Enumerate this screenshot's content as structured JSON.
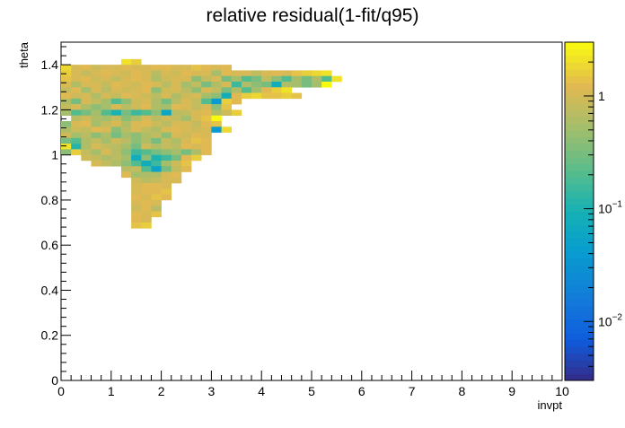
{
  "chart_data": {
    "type": "heatmap",
    "title": "relative residual(1-fit/q95)",
    "xlabel": "invpt",
    "ylabel": "theta",
    "xlim": [
      0,
      10
    ],
    "ylim": [
      0,
      1.5
    ],
    "x_ticks": [
      "0",
      "1",
      "2",
      "3",
      "4",
      "5",
      "6",
      "7",
      "8",
      "9",
      "10"
    ],
    "y_ticks": [
      "0",
      "0.2",
      "0.4",
      "0.6",
      "0.8",
      "1",
      "1.2",
      "1.4"
    ],
    "colorbar": {
      "scale": "log",
      "range": [
        0.003,
        3
      ],
      "ticks": [
        {
          "base": "10",
          "exp": "-2",
          "v": 0.01
        },
        {
          "base": "10",
          "exp": "-1",
          "v": 0.1
        },
        {
          "base": "1",
          "exp": "",
          "v": 1
        }
      ]
    },
    "grid": false,
    "bin_width": [
      0.2,
      0.025
    ],
    "rows": [
      {
        "y": 1.4,
        "x0": 1.2,
        "values": [
          2.0,
          1.6
        ]
      },
      {
        "y": 1.375,
        "x0": 0.0,
        "values": [
          1.8,
          1.0,
          1.2,
          0.9,
          1.1,
          1.0,
          1.2,
          1.1,
          1.0,
          1.2,
          1.3,
          1.0,
          1.1,
          1.4,
          1.2,
          1.0,
          1.3
        ]
      },
      {
        "y": 1.35,
        "x0": 0.0,
        "values": [
          1.6,
          1.1,
          0.8,
          1.0,
          1.2,
          1.0,
          0.9,
          1.3,
          1.1,
          0.7,
          1.0,
          0.9,
          1.2,
          1.0,
          1.1,
          0.5,
          1.2,
          1.0,
          1.1,
          0.8,
          1.0,
          1.3,
          1.0,
          1.5,
          1.6,
          1.8,
          2.2
        ]
      },
      {
        "y": 1.325,
        "x0": 0.0,
        "values": [
          1.4,
          1.0,
          1.2,
          0.9,
          1.1,
          0.8,
          1.0,
          1.2,
          1.0,
          0.6,
          0.9,
          1.1,
          1.0,
          0.4,
          0.8,
          1.0,
          0.3,
          0.5,
          0.2,
          0.3,
          0.8,
          0.4,
          0.2,
          0.5,
          0.3,
          0.6,
          0.2,
          2.2
        ]
      },
      {
        "y": 1.3,
        "x0": 0.0,
        "values": [
          1.0,
          0.6,
          1.1,
          1.0,
          0.8,
          1.2,
          1.0,
          0.9,
          1.3,
          1.1,
          0.7,
          1.0,
          0.5,
          0.8,
          0.3,
          0.6,
          1.0,
          0.15,
          0.6,
          0.4,
          0.3,
          0.08,
          0.6,
          0.5,
          0.3,
          0.5,
          3.0
        ]
      },
      {
        "y": 1.275,
        "x0": 0.0,
        "values": [
          0.8,
          1.2,
          0.5,
          1.0,
          0.7,
          1.1,
          0.9,
          1.0,
          1.2,
          0.4,
          0.9,
          1.1,
          0.7,
          0.4,
          1.0,
          0.8,
          0.3,
          0.6,
          0.2,
          0.5,
          1.2,
          1.6,
          2.0
        ]
      },
      {
        "y": 1.25,
        "x0": 0.0,
        "values": [
          1.2,
          0.9,
          1.1,
          0.6,
          1.0,
          0.8,
          1.2,
          1.0,
          0.9,
          0.7,
          1.0,
          0.6,
          0.9,
          1.1,
          0.5,
          0.4,
          0.08,
          1.2,
          1.6,
          1.8,
          1.4,
          1.5,
          1.7,
          1.4
        ]
      },
      {
        "y": 1.225,
        "x0": 0.0,
        "values": [
          0.6,
          0.3,
          1.0,
          0.8,
          0.5,
          0.2,
          0.4,
          0.9,
          1.0,
          0.6,
          0.3,
          0.7,
          1.0,
          0.8,
          0.2,
          0.04,
          1.6,
          1.3
        ]
      },
      {
        "y": 1.2,
        "x0": 0.0,
        "values": [
          0.8,
          1.0,
          0.6,
          0.4,
          0.5,
          1.0,
          0.7,
          0.9,
          1.2,
          0.6,
          0.5,
          1.2,
          1.0,
          0.8,
          1.0,
          0.4,
          1.4
        ]
      },
      {
        "y": 1.175,
        "x0": 0.0,
        "values": [
          0.5,
          0.2,
          0.3,
          0.5,
          0.2,
          0.1,
          0.3,
          0.15,
          0.2,
          0.4,
          0.06,
          0.7,
          0.8,
          1.0,
          1.2,
          0.6,
          0.9,
          1.6
        ]
      },
      {
        "y": 1.15,
        "x0": 0.2,
        "values": [
          0.7,
          0.9,
          0.6,
          0.5,
          0.8,
          0.4,
          0.6,
          1.0,
          0.7,
          0.9,
          0.8,
          0.5,
          1.0,
          1.4,
          3.0
        ]
      },
      {
        "y": 1.125,
        "x0": 0.0,
        "values": [
          0.4,
          1.0,
          1.2,
          0.5,
          0.8,
          1.1,
          0.6,
          1.0,
          1.2,
          0.9,
          0.7,
          1.0,
          1.1,
          0.8,
          1.2,
          1.4
        ]
      },
      {
        "y": 1.1,
        "x0": 0.0,
        "values": [
          0.6,
          0.9,
          0.8,
          1.2,
          1.0,
          0.4,
          0.7,
          1.0,
          0.8,
          0.6,
          1.0,
          1.2,
          1.0,
          0.9,
          1.1,
          0.04,
          1.8
        ]
      },
      {
        "y": 1.075,
        "x0": 0.0,
        "values": [
          0.9,
          0.5,
          0.7,
          0.4,
          0.6,
          0.3,
          0.5,
          0.4,
          0.6,
          0.8,
          0.4,
          1.1,
          0.9,
          1.2,
          1.0
        ]
      },
      {
        "y": 1.05,
        "x0": 0.0,
        "values": [
          0.3,
          0.2,
          0.6,
          0.8,
          0.5,
          0.9,
          0.7,
          0.4,
          0.6,
          0.3,
          0.8,
          0.6,
          1.0,
          1.4,
          1.2
        ]
      },
      {
        "y": 1.025,
        "x0": 0.0,
        "values": [
          2.0,
          0.12,
          0.6,
          1.0,
          0.8,
          0.7,
          0.5,
          0.3,
          0.9,
          0.6,
          0.8,
          0.7,
          1.2,
          1.0,
          1.3
        ]
      },
      {
        "y": 1.0,
        "x0": 0.0,
        "values": [
          0.4,
          1.6,
          0.8,
          0.5,
          1.0,
          0.7,
          0.4,
          0.15,
          0.2,
          0.3,
          0.4,
          0.5,
          0.3,
          0.6,
          1.2
        ]
      },
      {
        "y": 0.975,
        "x0": 0.4,
        "values": [
          0.9,
          0.8,
          0.6,
          0.7,
          0.5,
          0.08,
          0.4,
          0.1,
          0.15,
          0.3,
          1.3,
          1.6
        ]
      },
      {
        "y": 0.95,
        "x0": 0.6,
        "values": [
          1.0,
          0.8,
          0.6,
          0.4,
          0.2,
          0.08,
          0.15,
          0.5,
          0.9,
          1.4
        ]
      },
      {
        "y": 0.925,
        "x0": 1.2,
        "values": [
          0.7,
          0.8,
          0.2,
          0.05,
          0.3,
          0.8,
          1.2
        ]
      },
      {
        "y": 0.9,
        "x0": 1.2,
        "values": [
          1.2,
          0.5,
          0.6,
          0.6,
          1.0,
          1.2
        ]
      },
      {
        "y": 0.875,
        "x0": 1.4,
        "values": [
          0.9,
          0.7,
          0.8,
          1.0,
          1.1
        ]
      },
      {
        "y": 0.85,
        "x0": 1.4,
        "values": [
          1.0,
          1.2,
          1.3,
          1.1
        ]
      },
      {
        "y": 0.825,
        "x0": 1.4,
        "values": [
          1.1,
          1.3,
          1.2,
          1.4
        ]
      },
      {
        "y": 0.8,
        "x0": 1.4,
        "values": [
          1.2,
          1.0,
          1.4,
          1.3
        ]
      },
      {
        "y": 0.775,
        "x0": 1.4,
        "values": [
          1.0,
          1.3,
          1.1
        ]
      },
      {
        "y": 0.75,
        "x0": 1.4,
        "values": [
          0.9,
          1.2,
          0.7
        ]
      },
      {
        "y": 0.725,
        "x0": 1.4,
        "values": [
          1.3,
          1.1,
          1.5
        ]
      },
      {
        "y": 0.7,
        "x0": 1.4,
        "values": [
          1.2,
          1.0
        ]
      },
      {
        "y": 0.675,
        "x0": 1.4,
        "values": [
          1.4,
          1.6
        ]
      }
    ]
  }
}
